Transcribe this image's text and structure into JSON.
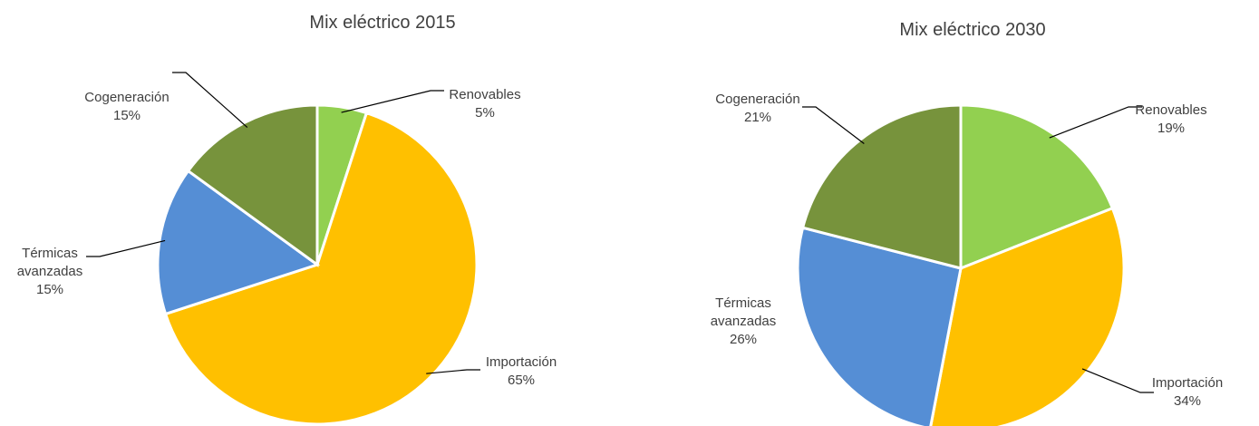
{
  "chart_data": [
    {
      "type": "pie",
      "title": "Mix eléctrico 2015",
      "categories": [
        "Renovables",
        "Importación",
        "Térmicas avanzadas",
        "Cogeneración"
      ],
      "values": [
        5,
        65,
        15,
        15
      ],
      "value_labels": [
        "5%",
        "65%",
        "15%",
        "15%"
      ],
      "colors": [
        "#92d050",
        "#ffc000",
        "#558ed5",
        "#77933c"
      ]
    },
    {
      "type": "pie",
      "title": "Mix eléctrico 2030",
      "categories": [
        "Renovables",
        "Importación",
        "Térmicas avanzadas",
        "Cogeneración"
      ],
      "values": [
        19,
        34,
        26,
        21
      ],
      "value_labels": [
        "19%",
        "34%",
        "26%",
        "21%"
      ],
      "colors": [
        "#92d050",
        "#ffc000",
        "#558ed5",
        "#77933c"
      ]
    }
  ]
}
